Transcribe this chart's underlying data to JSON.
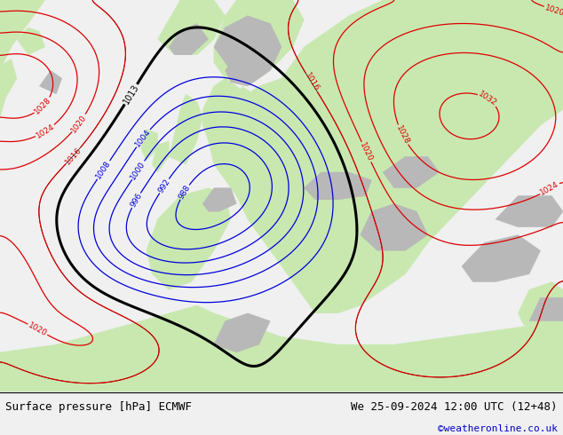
{
  "title_left": "Surface pressure [hPa] ECMWF",
  "title_right": "We 25-09-2024 12:00 UTC (12+48)",
  "credit": "©weatheronline.co.uk",
  "figsize": [
    6.34,
    4.9
  ],
  "dpi": 100,
  "ocean_color": "#d8d8d8",
  "land_color": "#c8e8b0",
  "mountain_color": "#b8b8b8",
  "bottom_bar_color": "#f0f0f0",
  "title_fontsize": 9,
  "credit_color": "#0000cc",
  "bottom_bar_height": 0.1,
  "blue_color": "#0000dd",
  "red_color": "#dd0000",
  "black_color": "#000000"
}
